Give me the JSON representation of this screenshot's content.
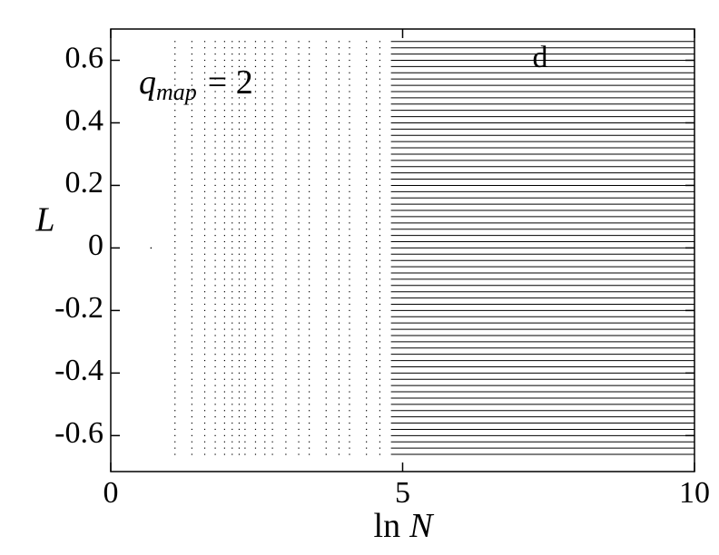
{
  "chart_data": {
    "type": "scatter",
    "xlabel": {
      "prefix": "ln",
      "var": "N"
    },
    "ylabel": "L",
    "annotation": {
      "var": "q",
      "sub": "map",
      "rest": "= 2"
    },
    "panel_label": "d",
    "xlim": [
      0,
      10
    ],
    "xticks": [
      0,
      5,
      10
    ],
    "ylim": [
      -0.715,
      0.7
    ],
    "yticks": [
      -0.6,
      -0.4,
      -0.2,
      0,
      0.2,
      0.4,
      0.6
    ],
    "color": "#000000",
    "single_point": {
      "x": 0.69,
      "y": 0
    },
    "dot_columns": [
      1.1,
      1.39,
      1.61,
      1.79,
      1.95,
      2.08,
      2.2,
      2.3,
      2.48,
      2.64,
      2.77,
      3.0,
      3.22,
      3.4,
      3.69,
      3.91,
      4.09,
      4.38,
      4.61
    ],
    "line_range": [
      4.8,
      10
    ],
    "levels": [
      -0.66,
      -0.64,
      -0.62,
      -0.6,
      -0.58,
      -0.56,
      -0.54,
      -0.52,
      -0.5,
      -0.48,
      -0.46,
      -0.44,
      -0.42,
      -0.4,
      -0.38,
      -0.36,
      -0.34,
      -0.32,
      -0.3,
      -0.28,
      -0.26,
      -0.24,
      -0.22,
      -0.2,
      -0.18,
      -0.16,
      -0.14,
      -0.12,
      -0.1,
      -0.08,
      -0.06,
      -0.04,
      -0.02,
      0,
      0.02,
      0.04,
      0.06,
      0.08,
      0.1,
      0.12,
      0.14,
      0.16,
      0.18,
      0.2,
      0.22,
      0.24,
      0.26,
      0.28,
      0.3,
      0.32,
      0.34,
      0.36,
      0.38,
      0.4,
      0.42,
      0.44,
      0.46,
      0.48,
      0.5,
      0.52,
      0.54,
      0.56,
      0.58,
      0.6,
      0.62,
      0.64,
      0.66
    ]
  }
}
